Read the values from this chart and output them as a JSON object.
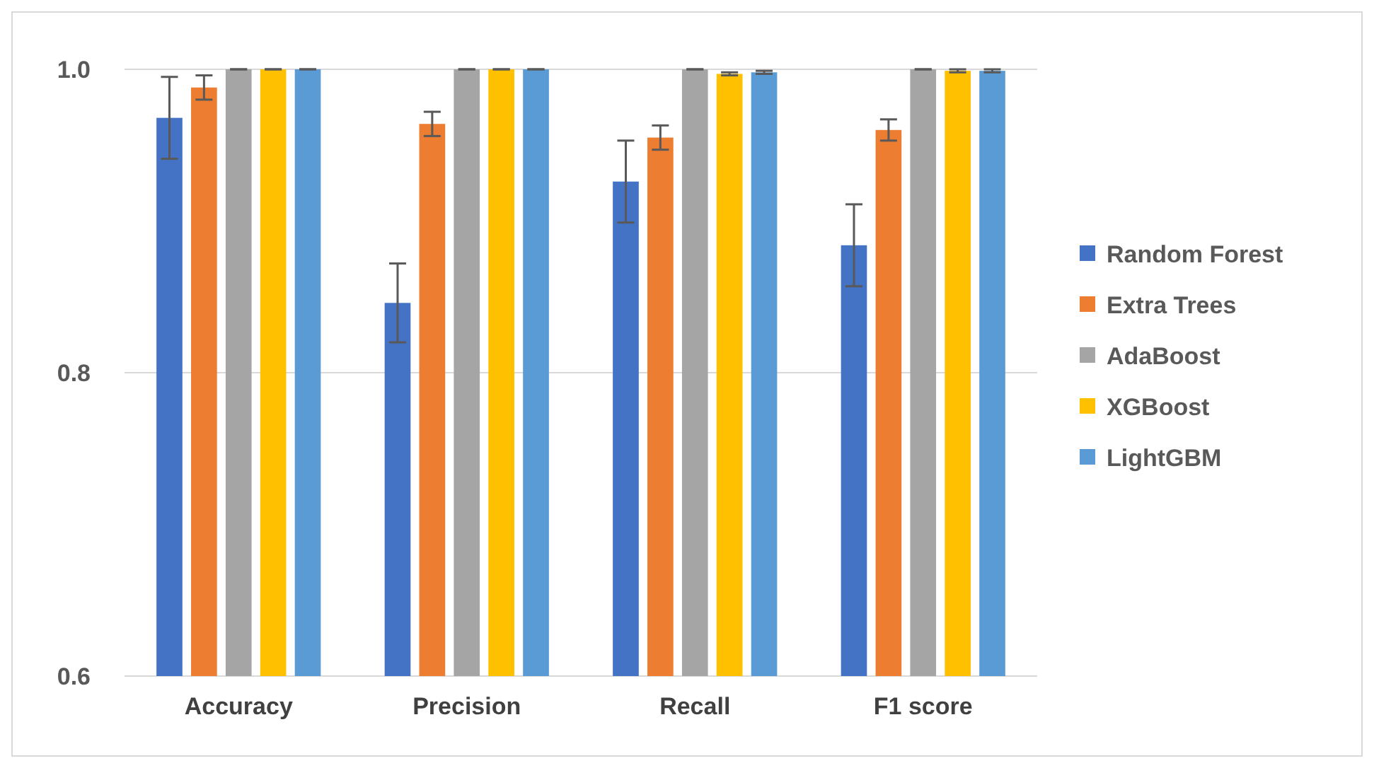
{
  "chart_data": {
    "type": "bar",
    "categories": [
      "Accuracy",
      "Precision",
      "Recall",
      "F1 score"
    ],
    "series": [
      {
        "name": "Random Forest",
        "color": "#4472c4",
        "values": [
          0.968,
          0.846,
          0.926,
          0.884
        ],
        "errors": [
          0.027,
          0.026,
          0.027,
          0.027
        ]
      },
      {
        "name": "Extra Trees",
        "color": "#ed7d31",
        "values": [
          0.988,
          0.964,
          0.955,
          0.96
        ],
        "errors": [
          0.008,
          0.008,
          0.008,
          0.007
        ]
      },
      {
        "name": "AdaBoost",
        "color": "#a5a5a5",
        "values": [
          1.0,
          1.0,
          1.0,
          1.0
        ],
        "errors": [
          0,
          0,
          0,
          0
        ]
      },
      {
        "name": "XGBoost",
        "color": "#ffc000",
        "values": [
          1.0,
          1.0,
          0.997,
          0.999
        ],
        "errors": [
          0,
          0,
          0.001,
          0.001
        ]
      },
      {
        "name": "LightGBM",
        "color": "#5b9bd5",
        "values": [
          1.0,
          1.0,
          0.998,
          0.999
        ],
        "errors": [
          0,
          0,
          0.001,
          0.001
        ]
      }
    ],
    "ylim": [
      0.6,
      1.0
    ],
    "yticks": [
      {
        "value": 0.6,
        "label": "0.6"
      },
      {
        "value": 0.8,
        "label": "0.8"
      },
      {
        "value": 1.0,
        "label": "1.0"
      }
    ],
    "grid": "y",
    "legend": "right"
  }
}
